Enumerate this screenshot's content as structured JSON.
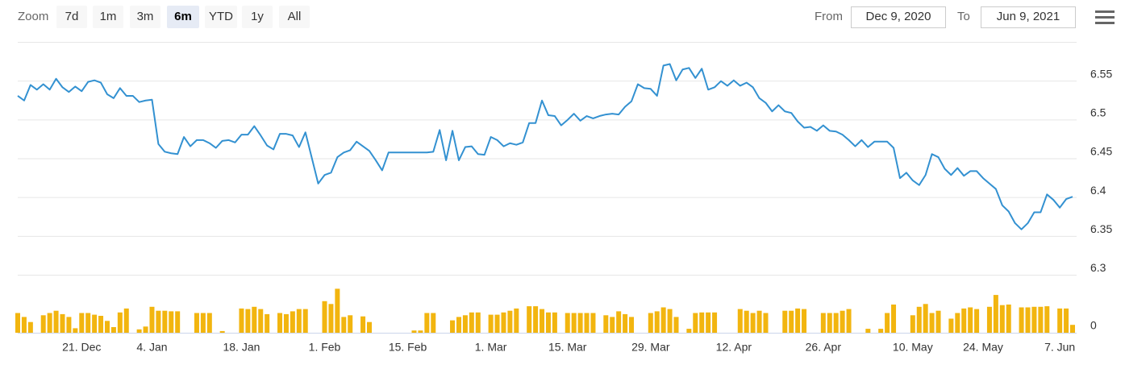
{
  "range_selector": {
    "label": "Zoom",
    "buttons": [
      "7d",
      "1m",
      "3m",
      "6m",
      "YTD",
      "1y",
      "All"
    ],
    "selected": "6m",
    "from_label": "From",
    "from": "Dec 9, 2020",
    "to_label": "To",
    "to": "Jun 9, 2021"
  },
  "chart_data": {
    "type": "stock",
    "categories": [
      null,
      null,
      null,
      null,
      null,
      null,
      null,
      null,
      null,
      null,
      "21. Dec",
      null,
      null,
      null,
      null,
      null,
      null,
      null,
      null,
      null,
      null,
      "4. Jan",
      null,
      null,
      null,
      null,
      null,
      null,
      null,
      null,
      null,
      null,
      null,
      null,
      null,
      "18. Jan",
      null,
      null,
      null,
      null,
      null,
      null,
      null,
      null,
      null,
      null,
      null,
      null,
      "1. Feb",
      null,
      null,
      null,
      null,
      null,
      null,
      null,
      null,
      null,
      null,
      null,
      null,
      "15. Feb",
      null,
      null,
      null,
      null,
      null,
      null,
      null,
      null,
      null,
      null,
      null,
      null,
      "1. Mar",
      null,
      null,
      null,
      null,
      null,
      null,
      null,
      null,
      null,
      null,
      null,
      "15. Mar",
      null,
      null,
      null,
      null,
      null,
      null,
      null,
      null,
      null,
      null,
      null,
      null,
      "29. Mar",
      null,
      null,
      null,
      null,
      null,
      null,
      null,
      null,
      null,
      null,
      null,
      null,
      "12. Apr",
      null,
      null,
      null,
      null,
      null,
      null,
      null,
      null,
      null,
      null,
      null,
      null,
      null,
      "26. Apr",
      null,
      null,
      null,
      null,
      null,
      null,
      null,
      null,
      null,
      null,
      null,
      null,
      null,
      "10. May",
      null,
      null,
      null,
      null,
      null,
      null,
      null,
      null,
      null,
      null,
      "24. May",
      null,
      null,
      null,
      null,
      null,
      null,
      null,
      null,
      null,
      null,
      null,
      "7. Jun",
      null,
      null
    ],
    "series": [
      {
        "type": "line",
        "color": "#3391d1",
        "values": [
          6.531,
          6.525,
          6.545,
          6.539,
          6.546,
          6.539,
          6.553,
          6.542,
          6.536,
          6.543,
          6.537,
          6.549,
          6.551,
          6.548,
          6.533,
          6.528,
          6.541,
          6.531,
          6.531,
          6.523,
          6.525,
          6.526,
          6.469,
          6.459,
          6.457,
          6.456,
          6.478,
          6.466,
          6.474,
          6.474,
          6.47,
          6.464,
          6.473,
          6.474,
          6.471,
          6.481,
          6.481,
          6.492,
          6.48,
          6.467,
          6.462,
          6.482,
          6.482,
          6.48,
          6.465,
          6.484,
          6.451,
          6.418,
          6.429,
          6.432,
          6.452,
          6.458,
          6.461,
          6.472,
          6.466,
          6.46,
          6.448,
          6.435,
          6.458,
          6.458,
          6.458,
          6.458,
          6.458,
          6.458,
          6.458,
          6.459,
          6.487,
          6.448,
          6.486,
          6.448,
          6.465,
          6.466,
          6.456,
          6.455,
          6.478,
          6.474,
          6.466,
          6.47,
          6.468,
          6.471,
          6.496,
          6.496,
          6.525,
          6.506,
          6.505,
          6.493,
          6.5,
          6.508,
          6.499,
          6.505,
          6.502,
          6.505,
          6.507,
          6.508,
          6.507,
          6.517,
          6.524,
          6.546,
          6.541,
          6.54,
          6.531,
          6.57,
          6.572,
          6.551,
          6.565,
          6.567,
          6.554,
          6.566,
          6.539,
          6.542,
          6.55,
          6.544,
          6.551,
          6.544,
          6.548,
          6.542,
          6.528,
          6.522,
          6.511,
          6.519,
          6.511,
          6.509,
          6.498,
          6.49,
          6.491,
          6.486,
          6.493,
          6.486,
          6.485,
          6.481,
          6.474,
          6.466,
          6.474,
          6.465,
          6.472,
          6.472,
          6.472,
          6.464,
          6.425,
          6.432,
          6.422,
          6.416,
          6.429,
          6.456,
          6.452,
          6.437,
          6.429,
          6.438,
          6.428,
          6.434,
          6.434,
          6.425,
          6.418,
          6.411,
          6.39,
          6.382,
          6.367,
          6.359,
          6.367,
          6.381,
          6.381,
          6.404,
          6.397,
          6.387,
          6.398,
          6.401
        ]
      },
      {
        "type": "column",
        "color": "#f2b50f",
        "axis": "y2",
        "values": [
          35,
          28,
          19,
          0,
          31,
          35,
          39,
          33,
          28,
          8,
          35,
          35,
          32,
          30,
          21,
          10,
          36,
          43,
          0,
          6,
          11,
          46,
          39,
          39,
          38,
          38,
          0,
          0,
          35,
          35,
          35,
          0,
          3,
          0,
          0,
          43,
          42,
          46,
          42,
          33,
          0,
          35,
          33,
          38,
          42,
          42,
          0,
          0,
          56,
          51,
          78,
          28,
          31,
          0,
          29,
          19,
          0,
          0,
          0,
          0,
          0,
          0,
          4,
          4,
          35,
          35,
          0,
          0,
          22,
          28,
          31,
          36,
          36,
          0,
          32,
          32,
          36,
          39,
          43,
          0,
          47,
          47,
          42,
          36,
          36,
          0,
          35,
          35,
          35,
          35,
          35,
          0,
          31,
          28,
          38,
          33,
          28,
          0,
          0,
          35,
          38,
          45,
          42,
          28,
          0,
          7,
          35,
          36,
          36,
          36,
          0,
          0,
          0,
          42,
          39,
          35,
          39,
          35,
          0,
          0,
          39,
          39,
          43,
          42,
          0,
          0,
          35,
          35,
          35,
          39,
          42,
          0,
          0,
          7,
          0,
          7,
          35,
          50,
          0,
          0,
          31,
          46,
          51,
          35,
          39,
          0,
          25,
          35,
          43,
          45,
          42,
          0,
          46,
          67,
          49,
          50,
          0,
          45,
          45,
          46,
          46,
          47,
          0,
          43,
          43,
          14
        ]
      }
    ],
    "ylim": [
      6.3,
      6.6
    ],
    "yticks": [
      6.3,
      6.35,
      6.4,
      6.45,
      6.5,
      6.55
    ],
    "y2lim": [
      0,
      100
    ],
    "y2ticks": [
      0
    ],
    "grid": true
  }
}
